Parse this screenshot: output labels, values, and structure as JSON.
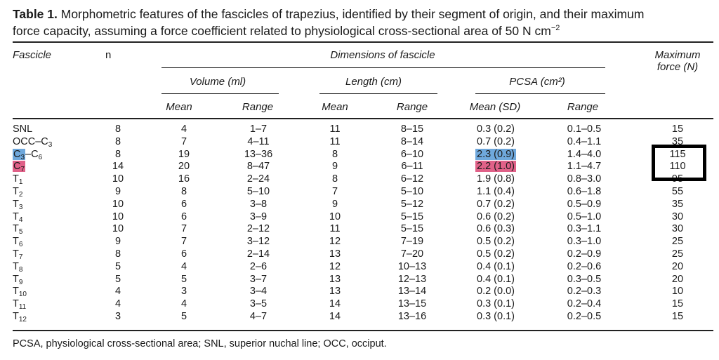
{
  "caption": {
    "label": "Table 1.",
    "line1": " Morphometric features of the fascicles of trapezius, identified by their segment of origin, and their maximum",
    "line2": "force capacity, assuming a force coefficient related to physiological cross-sectional area of 50 N cm",
    "line2_sup": "−2"
  },
  "headers": {
    "fascicle": "Fascicle",
    "n": "n",
    "dimensions": "Dimensions of fascicle",
    "max_force_1": "Maximum",
    "max_force_2": "force (N)",
    "volume": "Volume (ml)",
    "length": "Length (cm)",
    "pcsa": "PCSA (cm²)",
    "mean": "Mean",
    "range": "Range",
    "mean_sd": "Mean (SD)"
  },
  "highlight_colors": {
    "blue": "#6fa8dc",
    "pink": "#e06188"
  },
  "rows": [
    {
      "base": "SNL",
      "sub": "",
      "n": "8",
      "vol_mean": "4",
      "vol_range": "1–7",
      "len_mean": "11",
      "len_range": "8–15",
      "pcsa_mean": "0.3 (0.2)",
      "pcsa_range": "0.1–0.5",
      "force": "15"
    },
    {
      "base": "OCC–C",
      "sub": "3",
      "n": "8",
      "vol_mean": "7",
      "vol_range": "4–11",
      "len_mean": "11",
      "len_range": "8–14",
      "pcsa_mean": "0.7 (0.2)",
      "pcsa_range": "0.4–1.1",
      "force": "35"
    },
    {
      "base": "C",
      "sub": "3",
      "tail": "–C",
      "tail_sub": "6",
      "n": "8",
      "vol_mean": "19",
      "vol_range": "13–36",
      "len_mean": "8",
      "len_range": "6–10",
      "pcsa_mean": "2.3 (0.9)",
      "pcsa_range": "1.4–4.0",
      "force": "115",
      "highlight": "blue",
      "boxed": true
    },
    {
      "base": "C",
      "sub": "7",
      "n": "14",
      "vol_mean": "20",
      "vol_range": "8–47",
      "len_mean": "9",
      "len_range": "6–11",
      "pcsa_mean": "2.2 (1.0)",
      "pcsa_range": "1.1–4.7",
      "force": "110",
      "highlight": "pink",
      "boxed": true
    },
    {
      "base": "T",
      "sub": "1",
      "n": "10",
      "vol_mean": "16",
      "vol_range": "2–24",
      "len_mean": "8",
      "len_range": "6–12",
      "pcsa_mean": "1.9 (0.8)",
      "pcsa_range": "0.8–3.0",
      "force": "95"
    },
    {
      "base": "T",
      "sub": "2",
      "n": "9",
      "vol_mean": "8",
      "vol_range": "5–10",
      "len_mean": "7",
      "len_range": "5–10",
      "pcsa_mean": "1.1 (0.4)",
      "pcsa_range": "0.6–1.8",
      "force": "55"
    },
    {
      "base": "T",
      "sub": "3",
      "n": "10",
      "vol_mean": "6",
      "vol_range": "3–8",
      "len_mean": "9",
      "len_range": "5–12",
      "pcsa_mean": "0.7 (0.2)",
      "pcsa_range": "0.5–0.9",
      "force": "35"
    },
    {
      "base": "T",
      "sub": "4",
      "n": "10",
      "vol_mean": "6",
      "vol_range": "3–9",
      "len_mean": "10",
      "len_range": "5–15",
      "pcsa_mean": "0.6 (0.2)",
      "pcsa_range": "0.5–1.0",
      "force": "30"
    },
    {
      "base": "T",
      "sub": "5",
      "n": "10",
      "vol_mean": "7",
      "vol_range": "2–12",
      "len_mean": "11",
      "len_range": "5–15",
      "pcsa_mean": "0.6 (0.3)",
      "pcsa_range": "0.3–1.1",
      "force": "30"
    },
    {
      "base": "T",
      "sub": "6",
      "n": "9",
      "vol_mean": "7",
      "vol_range": "3–12",
      "len_mean": "12",
      "len_range": "7–19",
      "pcsa_mean": "0.5 (0.2)",
      "pcsa_range": "0.3–1.0",
      "force": "25"
    },
    {
      "base": "T",
      "sub": "7",
      "n": "8",
      "vol_mean": "6",
      "vol_range": "2–14",
      "len_mean": "13",
      "len_range": "7–20",
      "pcsa_mean": "0.5 (0.2)",
      "pcsa_range": "0.2–0.9",
      "force": "25"
    },
    {
      "base": "T",
      "sub": "8",
      "n": "5",
      "vol_mean": "4",
      "vol_range": "2–6",
      "len_mean": "12",
      "len_range": "10–13",
      "pcsa_mean": "0.4 (0.1)",
      "pcsa_range": "0.2–0.6",
      "force": "20"
    },
    {
      "base": "T",
      "sub": "9",
      "n": "5",
      "vol_mean": "5",
      "vol_range": "3–7",
      "len_mean": "13",
      "len_range": "12–13",
      "pcsa_mean": "0.4 (0.1)",
      "pcsa_range": "0.3–0.5",
      "force": "20"
    },
    {
      "base": "T",
      "sub": "10",
      "n": "4",
      "vol_mean": "3",
      "vol_range": "3–4",
      "len_mean": "13",
      "len_range": "13–14",
      "pcsa_mean": "0.2 (0.0)",
      "pcsa_range": "0.2–0.3",
      "force": "10"
    },
    {
      "base": "T",
      "sub": "11",
      "n": "4",
      "vol_mean": "4",
      "vol_range": "3–5",
      "len_mean": "14",
      "len_range": "13–15",
      "pcsa_mean": "0.3 (0.1)",
      "pcsa_range": "0.2–0.4",
      "force": "15"
    },
    {
      "base": "T",
      "sub": "12",
      "n": "3",
      "vol_mean": "5",
      "vol_range": "4–7",
      "len_mean": "14",
      "len_range": "13–16",
      "pcsa_mean": "0.3 (0.1)",
      "pcsa_range": "0.2–0.5",
      "force": "15"
    }
  ],
  "footnote": "PCSA, physiological cross-sectional area; SNL, superior nuchal line; OCC, occiput."
}
